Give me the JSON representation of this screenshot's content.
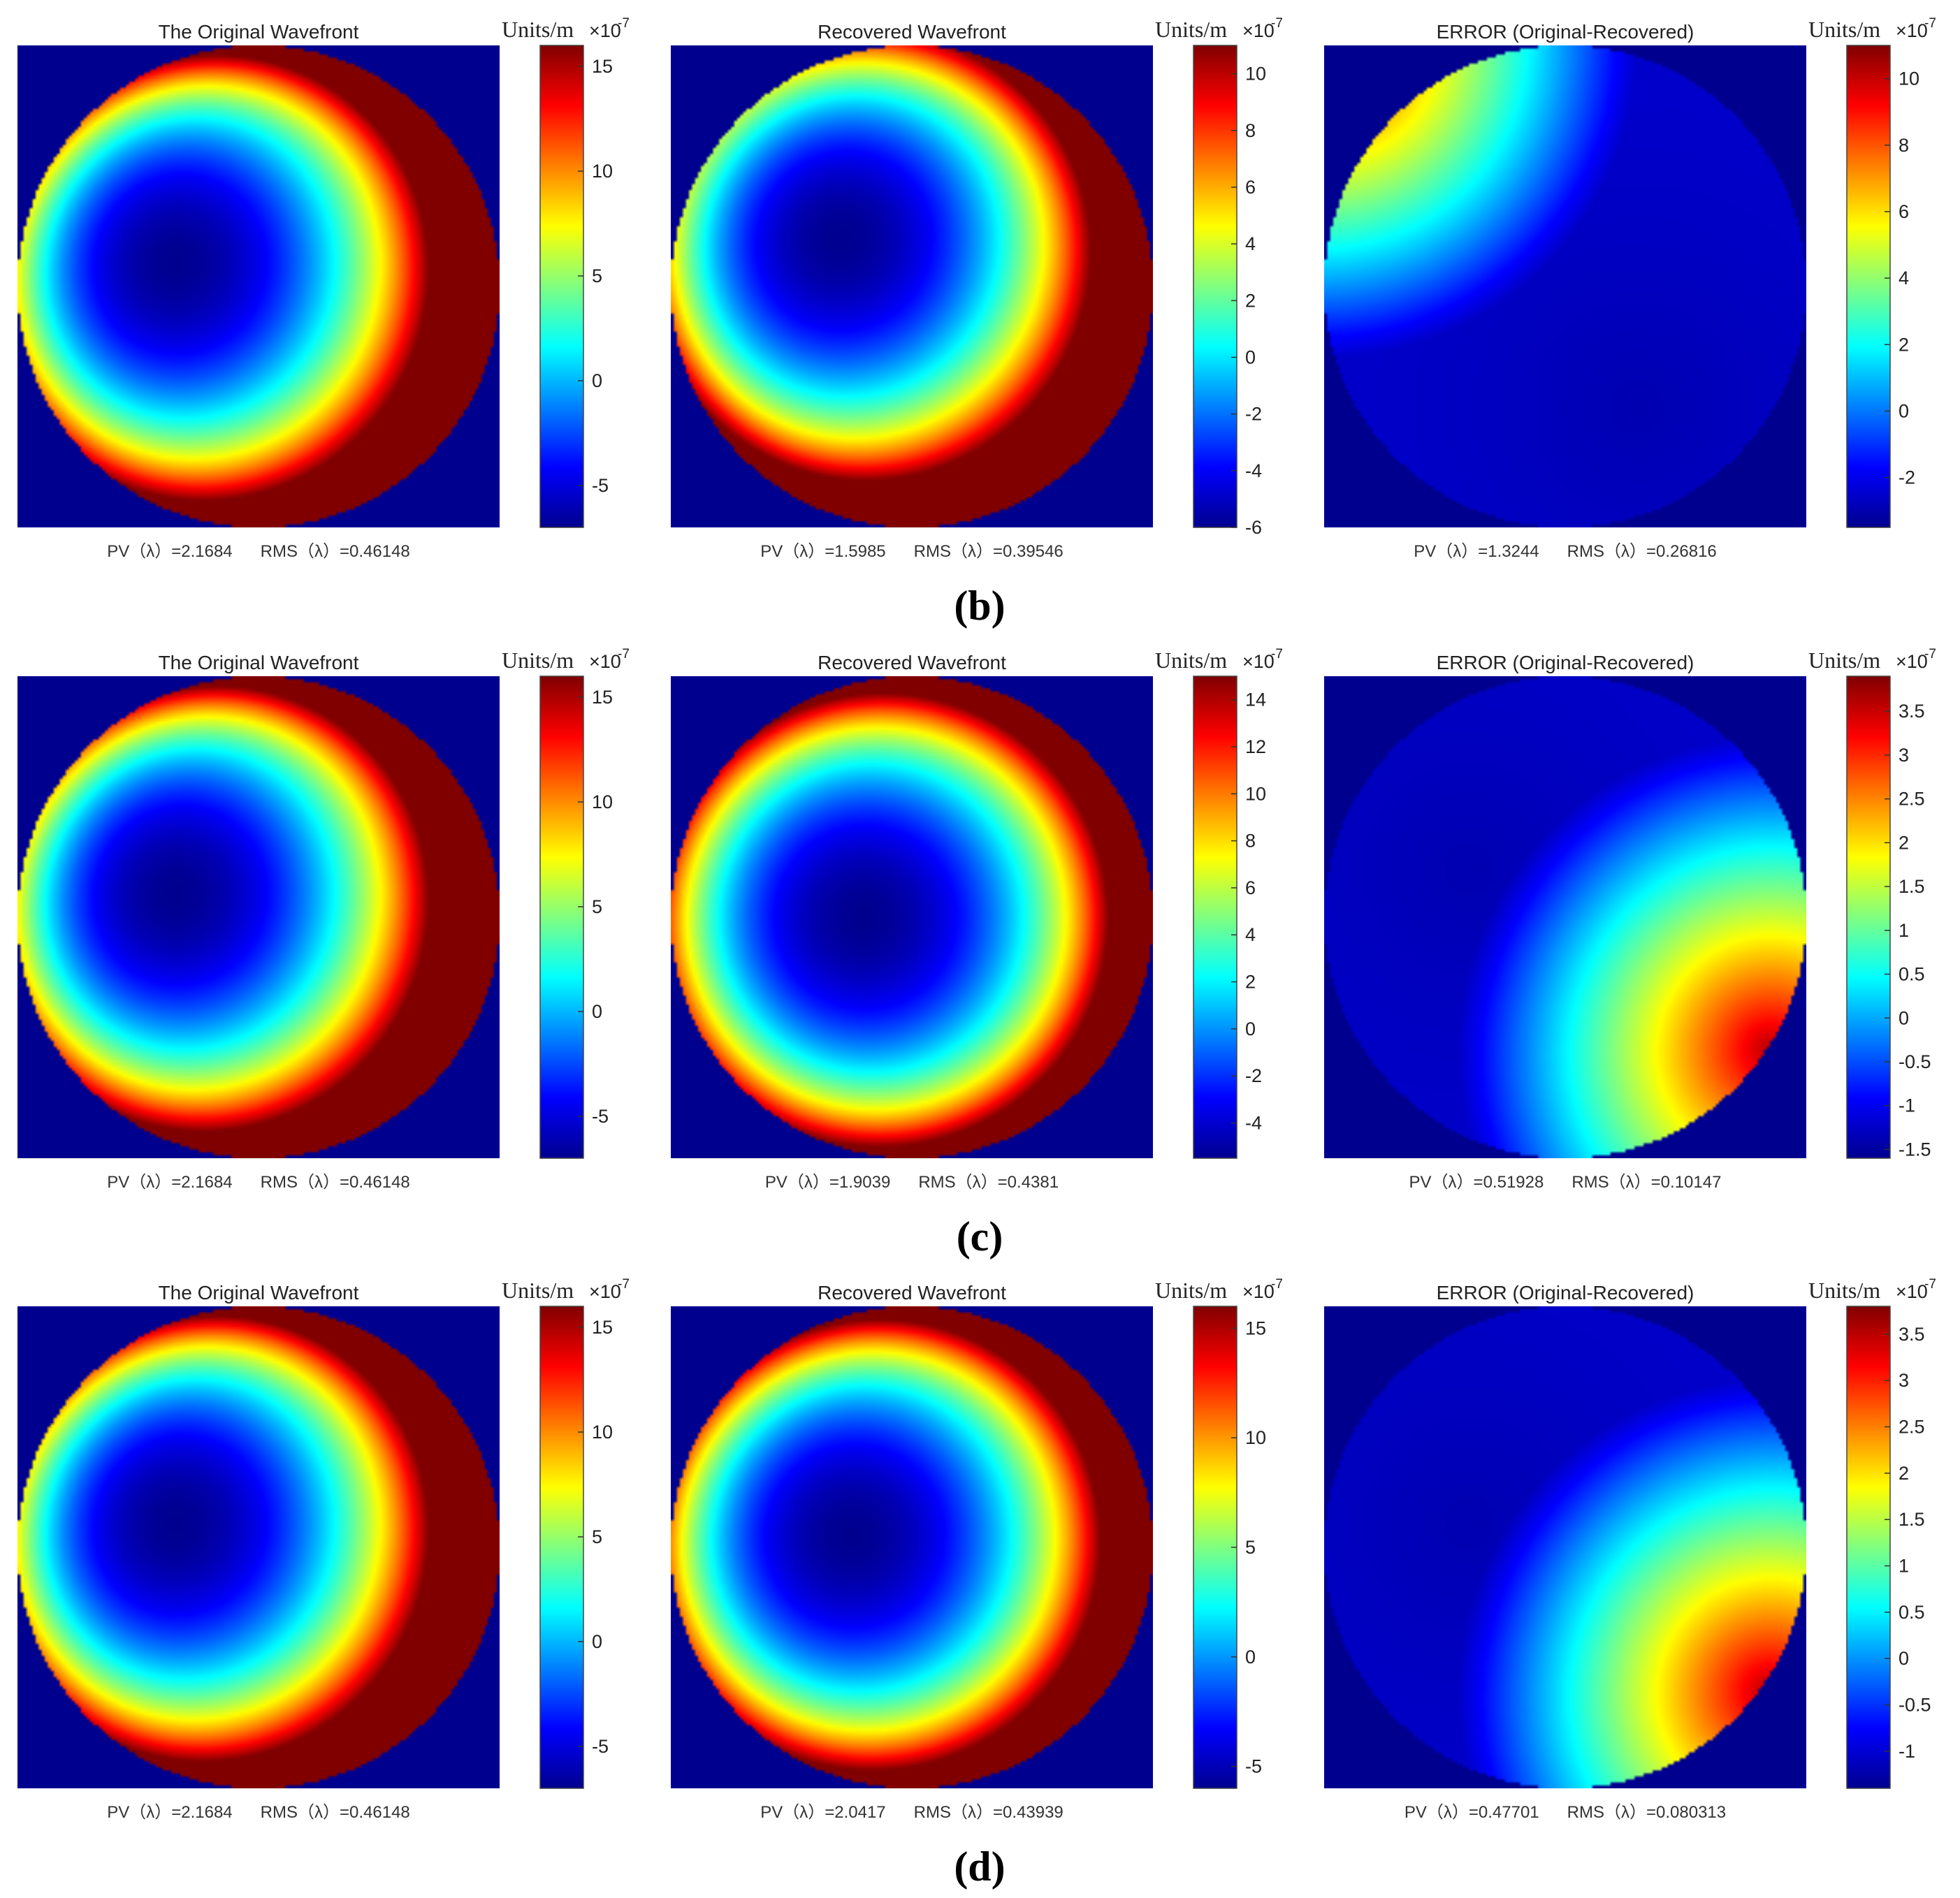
{
  "colors": {
    "background": "#00008f",
    "colormap": [
      "#00008f",
      "#0000ff",
      "#0080ff",
      "#00ffff",
      "#80ff80",
      "#ffff00",
      "#ff8000",
      "#ff0000",
      "#800000"
    ]
  },
  "rows": [
    {
      "label": "(b)",
      "panels": [
        {
          "title": "The Original Wavefront",
          "unit_label": "Units/m",
          "exponent_label": "×10",
          "exponent_power": "-7",
          "stats": "PV（λ）=2.1684      RMS（λ）=0.46148",
          "colorbar": {
            "min": -7,
            "max": 16,
            "ticks": [
              "15",
              "10",
              "5",
              "0",
              "-5"
            ],
            "tick_values": [
              15,
              10,
              5,
              0,
              -5
            ]
          },
          "field": {
            "type": "bowl",
            "min_point": [
              -0.35,
              0.1
            ],
            "min_value": -7,
            "edge_bias": [
              0.5,
              0.4
            ]
          }
        },
        {
          "title": "Recovered Wavefront",
          "unit_label": "Units/m",
          "exponent_label": "×10",
          "exponent_power": "-7",
          "stats": "PV（λ）=1.5985      RMS（λ）=0.39546",
          "colorbar": {
            "min": -6,
            "max": 11,
            "ticks": [
              "10",
              "8",
              "6",
              "4",
              "2",
              "0",
              "-2",
              "-4",
              "-6"
            ],
            "tick_values": [
              10,
              8,
              6,
              4,
              2,
              0,
              -2,
              -4,
              -6
            ]
          },
          "field": {
            "type": "bowl",
            "min_point": [
              -0.3,
              0.2
            ],
            "min_value": -6,
            "edge_bias": [
              0.6,
              -0.6
            ]
          }
        },
        {
          "title": "ERROR (Original-Recovered)",
          "unit_label": "Units/m",
          "exponent_label": "×10",
          "exponent_power": "-7",
          "stats": "PV（λ）=1.3244      RMS（λ）=0.26816",
          "colorbar": {
            "min": -3.5,
            "max": 11,
            "ticks": [
              "10",
              "8",
              "6",
              "4",
              "2",
              "0",
              "-2"
            ],
            "tick_values": [
              10,
              8,
              6,
              4,
              2,
              0,
              -2
            ]
          },
          "field": {
            "type": "gradient",
            "hot_point": [
              -1.0,
              1.0
            ],
            "cold_point": [
              0.3,
              -0.5
            ]
          }
        }
      ]
    },
    {
      "label": "(c)",
      "panels": [
        {
          "title": "The Original Wavefront",
          "unit_label": "Units/m",
          "exponent_label": "×10",
          "exponent_power": "-7",
          "stats": "PV（λ）=2.1684      RMS（λ）=0.46148",
          "colorbar": {
            "min": -7,
            "max": 16,
            "ticks": [
              "15",
              "10",
              "5",
              "0",
              "-5"
            ],
            "tick_values": [
              15,
              10,
              5,
              0,
              -5
            ]
          },
          "field": {
            "type": "bowl",
            "min_point": [
              -0.35,
              0.1
            ],
            "min_value": -7,
            "edge_bias": [
              0.5,
              0.4
            ]
          }
        },
        {
          "title": "Recovered Wavefront",
          "unit_label": "Units/m",
          "exponent_label": "×10",
          "exponent_power": "-7",
          "stats": "PV（λ）=1.9039      RMS（λ）=0.4381",
          "colorbar": {
            "min": -5.5,
            "max": 15,
            "ticks": [
              "14",
              "12",
              "10",
              "8",
              "6",
              "4",
              "2",
              "0",
              "-2",
              "-4"
            ],
            "tick_values": [
              14,
              12,
              10,
              8,
              6,
              4,
              2,
              0,
              -2,
              -4
            ]
          },
          "field": {
            "type": "bowl",
            "min_point": [
              -0.2,
              0.0
            ],
            "min_value": -5.5,
            "edge_bias": [
              0.6,
              0.3
            ]
          }
        },
        {
          "title": "ERROR (Original-Recovered)",
          "unit_label": "Units/m",
          "exponent_label": "×10",
          "exponent_power": "-7",
          "stats": "PV（λ）=0.51928      RMS（λ）=0.10147",
          "colorbar": {
            "min": -1.6,
            "max": 3.9,
            "ticks": [
              "3.5",
              "3",
              "2.5",
              "2",
              "1.5",
              "1",
              "0.5",
              "0",
              "-0.5",
              "-1",
              "-1.5"
            ],
            "tick_values": [
              3.5,
              3,
              2.5,
              2,
              1.5,
              1,
              0.5,
              0,
              -0.5,
              -1,
              -1.5
            ]
          },
          "field": {
            "type": "gradient",
            "hot_point": [
              0.85,
              -0.55
            ],
            "cold_point": [
              -0.4,
              0.2
            ]
          }
        }
      ]
    },
    {
      "label": "(d)",
      "panels": [
        {
          "title": "The Original Wavefront",
          "unit_label": "Units/m",
          "exponent_label": "×10",
          "exponent_power": "-7",
          "stats": "PV（λ）=2.1684      RMS（λ）=0.46148",
          "colorbar": {
            "min": -7,
            "max": 16,
            "ticks": [
              "15",
              "10",
              "5",
              "0",
              "-5"
            ],
            "tick_values": [
              15,
              10,
              5,
              0,
              -5
            ]
          },
          "field": {
            "type": "bowl",
            "min_point": [
              -0.35,
              0.1
            ],
            "min_value": -7,
            "edge_bias": [
              0.5,
              0.4
            ]
          }
        },
        {
          "title": "Recovered Wavefront",
          "unit_label": "Units/m",
          "exponent_label": "×10",
          "exponent_power": "-7",
          "stats": "PV（λ）=2.0417      RMS（λ）=0.43939",
          "colorbar": {
            "min": -6,
            "max": 16,
            "ticks": [
              "15",
              "10",
              "5",
              "0",
              "-5"
            ],
            "tick_values": [
              15,
              10,
              5,
              0,
              -5
            ]
          },
          "field": {
            "type": "bowl",
            "min_point": [
              -0.25,
              0.05
            ],
            "min_value": -6,
            "edge_bias": [
              0.5,
              0.4
            ]
          }
        },
        {
          "title": "ERROR (Original-Recovered)",
          "unit_label": "Units/m",
          "exponent_label": "×10",
          "exponent_power": "-7",
          "stats": "PV（λ）=0.47701      RMS（λ）=0.080313",
          "colorbar": {
            "min": -1.4,
            "max": 3.8,
            "ticks": [
              "3.5",
              "3",
              "2.5",
              "2",
              "1.5",
              "1",
              "0.5",
              "0",
              "-0.5",
              "-1"
            ],
            "tick_values": [
              3.5,
              3,
              2.5,
              2,
              1.5,
              1,
              0.5,
              0,
              -0.5,
              -1
            ]
          },
          "field": {
            "type": "gradient",
            "hot_point": [
              0.85,
              -0.6
            ],
            "cold_point": [
              -0.4,
              0.1
            ]
          }
        }
      ]
    }
  ],
  "chart_data": {
    "type": "heatmap",
    "panels": [
      {
        "row": "(b)",
        "title": "The Original Wavefront",
        "colorbar_range": [
          -7,
          16
        ],
        "scale": "×10^-7",
        "pv": 2.1684,
        "rms": 0.46148
      },
      {
        "row": "(b)",
        "title": "Recovered Wavefront",
        "colorbar_range": [
          -6,
          11
        ],
        "scale": "×10^-7",
        "pv": 1.5985,
        "rms": 0.39546
      },
      {
        "row": "(b)",
        "title": "ERROR (Original-Recovered)",
        "colorbar_range": [
          -3.5,
          11
        ],
        "scale": "×10^-7",
        "pv": 1.3244,
        "rms": 0.26816
      },
      {
        "row": "(c)",
        "title": "The Original Wavefront",
        "colorbar_range": [
          -7,
          16
        ],
        "scale": "×10^-7",
        "pv": 2.1684,
        "rms": 0.46148
      },
      {
        "row": "(c)",
        "title": "Recovered Wavefront",
        "colorbar_range": [
          -5.5,
          15
        ],
        "scale": "×10^-7",
        "pv": 1.9039,
        "rms": 0.4381
      },
      {
        "row": "(c)",
        "title": "ERROR (Original-Recovered)",
        "colorbar_range": [
          -1.6,
          3.9
        ],
        "scale": "×10^-7",
        "pv": 0.51928,
        "rms": 0.10147
      },
      {
        "row": "(d)",
        "title": "The Original Wavefront",
        "colorbar_range": [
          -7,
          16
        ],
        "scale": "×10^-7",
        "pv": 2.1684,
        "rms": 0.46148
      },
      {
        "row": "(d)",
        "title": "Recovered Wavefront",
        "colorbar_range": [
          -6,
          16
        ],
        "scale": "×10^-7",
        "pv": 2.0417,
        "rms": 0.43939
      },
      {
        "row": "(d)",
        "title": "ERROR (Original-Recovered)",
        "colorbar_range": [
          -1.4,
          3.8
        ],
        "scale": "×10^-7",
        "pv": 0.47701,
        "rms": 0.080313
      }
    ]
  }
}
